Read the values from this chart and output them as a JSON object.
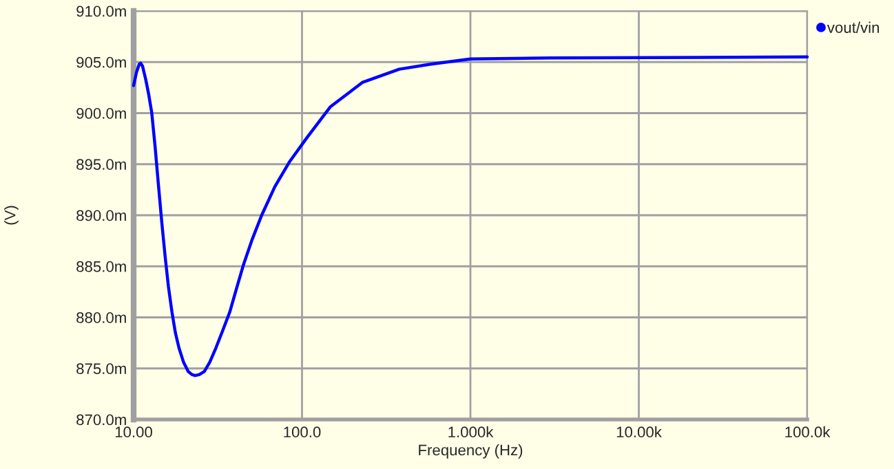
{
  "chart_data": {
    "type": "line",
    "xlabel": "Frequency (Hz)",
    "ylabel": "(V)",
    "log": "x",
    "xlim": [
      10,
      100000
    ],
    "ylim": [
      870,
      910
    ],
    "xticks": [
      {
        "value": 10,
        "label": "10.00"
      },
      {
        "value": 100,
        "label": "100.0"
      },
      {
        "value": 1000,
        "label": "1.000k"
      },
      {
        "value": 10000,
        "label": "10.00k"
      },
      {
        "value": 100000,
        "label": "100.0k"
      }
    ],
    "yticks": [
      {
        "value": 870,
        "label": "870.0m"
      },
      {
        "value": 875,
        "label": "875.0m"
      },
      {
        "value": 880,
        "label": "880.0m"
      },
      {
        "value": 885,
        "label": "885.0m"
      },
      {
        "value": 890,
        "label": "890.0m"
      },
      {
        "value": 895,
        "label": "895.0m"
      },
      {
        "value": 900,
        "label": "900.0m"
      },
      {
        "value": 905,
        "label": "905.0m"
      },
      {
        "value": 910,
        "label": "910.0m"
      }
    ],
    "grid": true,
    "legend": "top right",
    "line_style": "solid",
    "series": [
      {
        "name": "vout/vin",
        "color": "#0000ff",
        "x": [
          10,
          10.4,
          10.8,
          11.0,
          11.3,
          11.8,
          12.3,
          12.8,
          13.4,
          14.0,
          14.7,
          15.4,
          16.1,
          16.9,
          17.7,
          18.6,
          19.8,
          21.1,
          22.2,
          23.2,
          24.6,
          26.3,
          28.3,
          30.8,
          33.8,
          37.2,
          40.8,
          44.8,
          50.5,
          57.6,
          69,
          84,
          107,
          147,
          228,
          378,
          583,
          1000,
          3000,
          100000
        ],
        "values": [
          902.7,
          904.0,
          904.8,
          904.9,
          904.6,
          903.3,
          901.8,
          900.1,
          896.8,
          893.2,
          889.3,
          885.9,
          883.0,
          880.5,
          878.5,
          877.0,
          875.6,
          874.7,
          874.4,
          874.3,
          874.4,
          874.7,
          875.6,
          877.0,
          878.7,
          880.5,
          882.8,
          885.1,
          887.6,
          890.0,
          892.8,
          895.2,
          897.6,
          900.6,
          903.0,
          904.3,
          904.8,
          905.3,
          905.4,
          905.5
        ]
      }
    ]
  }
}
